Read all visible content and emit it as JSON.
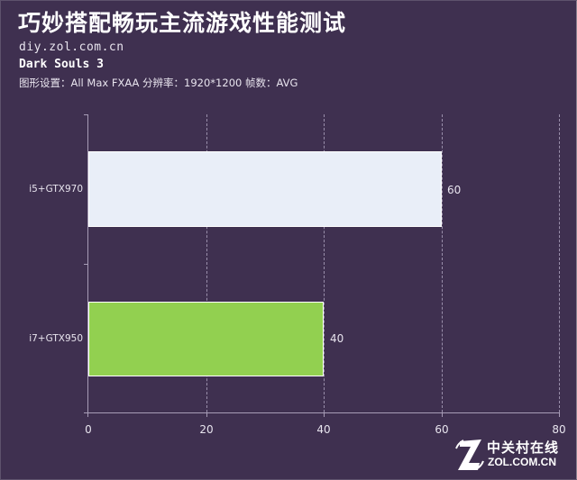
{
  "header": {
    "title": "巧妙搭配畅玩主流游戏性能测试",
    "site": "diy.zol.com.cn",
    "game": "Dark Souls 3",
    "settings": "图形设置：All Max FXAA 分辨率：1920*1200 帧数：AVG"
  },
  "watermark": {
    "cn": "中关村在线",
    "en": "ZOL.COM.CN",
    "icon": "zol-z-logo-icon"
  },
  "colors": {
    "background": "#3f3050",
    "bar_gtx970": "#e9eef8",
    "bar_gtx950": "#92d050",
    "grid": "#9a8fab",
    "axis": "#a79cb6"
  },
  "chart_data": {
    "type": "bar",
    "orientation": "horizontal",
    "title": "巧妙搭配畅玩主流游戏性能测试",
    "subtitle": "Dark Souls 3 — 图形设置：All Max FXAA 分辨率：1920*1200 帧数：AVG",
    "categories": [
      "i5+GTX970",
      "i7+GTX950"
    ],
    "values": [
      60,
      40
    ],
    "bar_colors": [
      "#e9eef8",
      "#92d050"
    ],
    "data_labels": [
      "60",
      "40"
    ],
    "xlabel": "",
    "ylabel": "",
    "xlim": [
      0,
      80
    ],
    "x_ticks": [
      "0",
      "20",
      "40",
      "60",
      "80"
    ],
    "grid": "vertical dashed",
    "legend": "none"
  }
}
